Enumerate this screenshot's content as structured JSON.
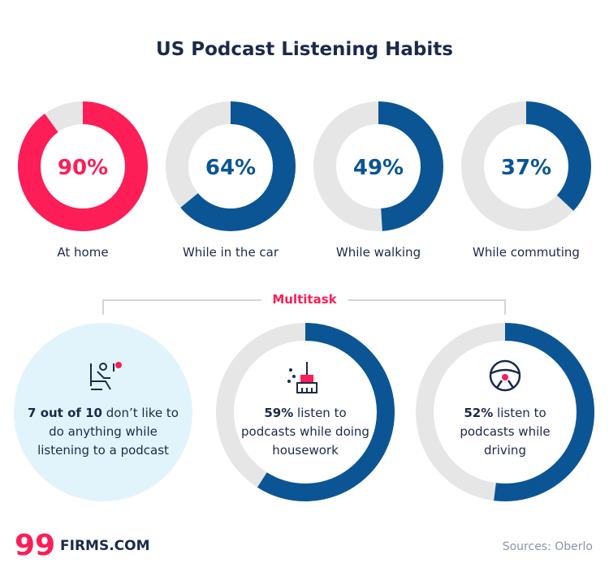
{
  "title": "US Podcast Listening Habits",
  "donuts": [
    {
      "value": 90,
      "value_label": "90%",
      "label": "At home",
      "color": "#fd1d57"
    },
    {
      "value": 64,
      "value_label": "64%",
      "label": "While in the car",
      "color": "#0b5594"
    },
    {
      "value": 49,
      "value_label": "49%",
      "label": "While walking",
      "color": "#0b5594"
    },
    {
      "value": 37,
      "value_label": "37%",
      "label": "While commuting",
      "color": "#0b5594"
    }
  ],
  "multitask": {
    "heading": "Multitask",
    "cards": [
      {
        "bold": "7 out of 10",
        "text": "don’t like to do anything while listening to a podcast"
      },
      {
        "bold": "59%",
        "value": 59,
        "text": "listen to podcasts while doing housework",
        "color": "#0b5594"
      },
      {
        "bold": "52%",
        "value": 52,
        "text": "listen to podcasts while driving",
        "color": "#0b5594"
      }
    ]
  },
  "footer": {
    "logo": "99",
    "brand": "FIRMS.COM",
    "source": "Sources: Oberlo"
  }
}
